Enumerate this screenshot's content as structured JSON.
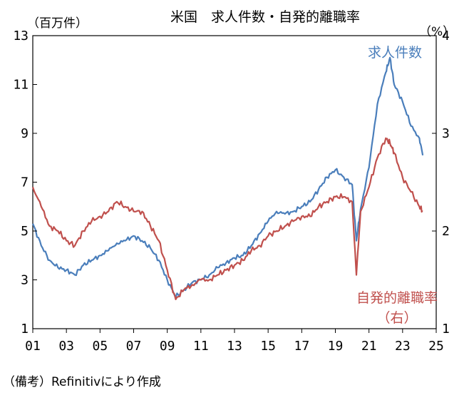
{
  "chart_data": {
    "type": "line",
    "title": "米国　求人件数・自発的離職率",
    "ylabel_left": "（百万件）",
    "ylabel_right": "（%）",
    "ylim_left": [
      1,
      13
    ],
    "ylim_right": [
      1,
      4
    ],
    "yticks_left": [
      "1",
      "3",
      "5",
      "7",
      "9",
      "11",
      "13"
    ],
    "yticks_right": [
      "1",
      "2",
      "3",
      "4"
    ],
    "xlim": [
      2001,
      2025
    ],
    "xticks": [
      "01",
      "03",
      "05",
      "07",
      "09",
      "11",
      "13",
      "15",
      "17",
      "19",
      "21",
      "23",
      "25"
    ],
    "grid": false,
    "series": [
      {
        "name": "求人件数",
        "axis": "left",
        "color": "#4a7ebb",
        "x": [
          2001.0,
          2001.5,
          2002.0,
          2002.5,
          2003.0,
          2003.5,
          2004.0,
          2004.5,
          2005.0,
          2005.5,
          2006.0,
          2006.5,
          2007.0,
          2007.5,
          2008.0,
          2008.5,
          2009.0,
          2009.5,
          2010.0,
          2010.5,
          2011.0,
          2011.5,
          2012.0,
          2012.5,
          2013.0,
          2013.5,
          2014.0,
          2014.5,
          2015.0,
          2015.5,
          2016.0,
          2016.5,
          2017.0,
          2017.5,
          2018.0,
          2018.5,
          2019.0,
          2019.5,
          2020.0,
          2020.25,
          2020.5,
          2021.0,
          2021.5,
          2022.0,
          2022.25,
          2022.5,
          2023.0,
          2023.5,
          2024.0,
          2024.2
        ],
        "values": [
          5.3,
          4.4,
          3.8,
          3.5,
          3.4,
          3.2,
          3.6,
          3.8,
          4.0,
          4.2,
          4.5,
          4.6,
          4.8,
          4.6,
          4.3,
          3.8,
          3.0,
          2.3,
          2.6,
          2.9,
          3.0,
          3.2,
          3.5,
          3.7,
          3.9,
          4.0,
          4.4,
          4.9,
          5.4,
          5.8,
          5.7,
          5.8,
          6.0,
          6.2,
          6.7,
          7.2,
          7.5,
          7.2,
          6.9,
          4.6,
          5.9,
          7.6,
          10.2,
          11.5,
          12.1,
          11.0,
          10.3,
          9.3,
          8.8,
          8.1
        ]
      },
      {
        "name": "自発的離職率（右）",
        "axis": "right",
        "color": "#c0504d",
        "x": [
          2001.0,
          2001.5,
          2002.0,
          2002.5,
          2003.0,
          2003.5,
          2004.0,
          2004.5,
          2005.0,
          2005.5,
          2006.0,
          2006.5,
          2007.0,
          2007.5,
          2008.0,
          2008.5,
          2009.0,
          2009.5,
          2010.0,
          2010.5,
          2011.0,
          2011.5,
          2012.0,
          2012.5,
          2013.0,
          2013.5,
          2014.0,
          2014.5,
          2015.0,
          2015.5,
          2016.0,
          2016.5,
          2017.0,
          2017.5,
          2018.0,
          2018.5,
          2019.0,
          2019.5,
          2020.0,
          2020.25,
          2020.5,
          2021.0,
          2021.5,
          2022.0,
          2022.25,
          2022.5,
          2023.0,
          2023.5,
          2024.0,
          2024.2
        ],
        "values": [
          2.45,
          2.25,
          2.05,
          2.0,
          1.9,
          1.85,
          2.0,
          2.1,
          2.15,
          2.2,
          2.3,
          2.25,
          2.2,
          2.2,
          2.05,
          1.9,
          1.6,
          1.3,
          1.4,
          1.45,
          1.5,
          1.5,
          1.55,
          1.6,
          1.65,
          1.7,
          1.8,
          1.85,
          1.95,
          2.0,
          2.05,
          2.1,
          2.15,
          2.15,
          2.25,
          2.3,
          2.35,
          2.35,
          2.3,
          1.55,
          2.2,
          2.45,
          2.75,
          2.95,
          2.9,
          2.8,
          2.55,
          2.4,
          2.25,
          2.2
        ]
      }
    ],
    "annotations": [
      {
        "text": "求人件数",
        "color": "#4a7ebb"
      },
      {
        "text": "自発的離職率",
        "color": "#c0504d"
      },
      {
        "text": "（右）",
        "color": "#c0504d"
      }
    ]
  },
  "source": "（備考）Refinitivにより作成"
}
